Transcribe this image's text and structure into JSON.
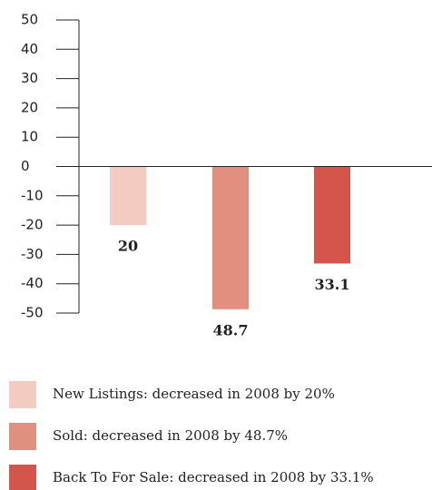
{
  "chart_data": {
    "type": "bar",
    "categories": [
      "New Listings: decreased in 2008 by 20%",
      "Sold: decreased in 2008 by 48.7%",
      "Back To For Sale: decreased in 2008 by 33.1%"
    ],
    "values": [
      -20,
      -48.7,
      -33.1
    ],
    "value_labels": [
      "20",
      "48.7",
      "33.1"
    ],
    "colors": [
      "#f3cbc0",
      "#e1907f",
      "#d3554b"
    ],
    "ylim": [
      -50,
      50
    ],
    "yticks": [
      50,
      40,
      30,
      20,
      10,
      0,
      -10,
      -20,
      -30,
      -40,
      -50
    ],
    "legend": "bottom"
  }
}
